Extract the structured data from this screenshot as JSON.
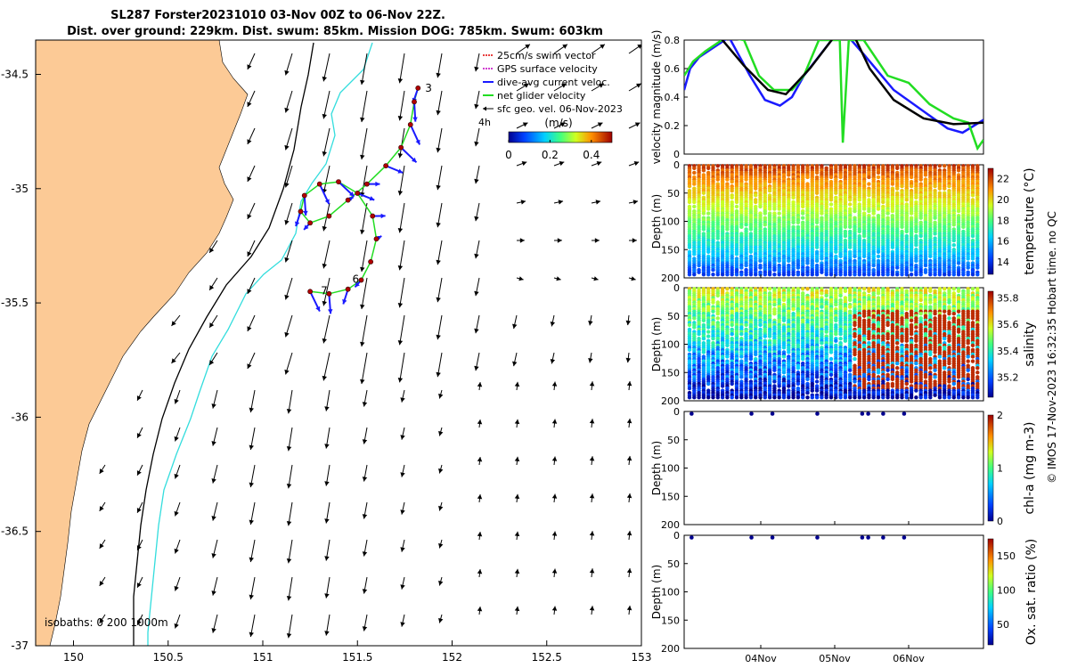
{
  "chart_data": [
    {
      "type": "map",
      "title_line1": "SL287 Forster20231010 03-Nov 00Z to 06-Nov 22Z.",
      "title_line2": "Dist. over ground: 229km. Dist. swum: 85km. Mission DOG: 785km. Swum: 603km",
      "xticks": [
        "150",
        "150.5",
        "151",
        "151.5",
        "152",
        "152.5",
        "153"
      ],
      "yticks": [
        "-34.5",
        "-35",
        "-35.5",
        "-36",
        "-36.5",
        "-37"
      ],
      "xlim": [
        149.8,
        153
      ],
      "ylim": [
        -37,
        -34.35
      ],
      "legend": [
        {
          "label": "25cm/s swim vector",
          "color": "#e00000"
        },
        {
          "label": "GPS surface velocity",
          "color": "#c000c0"
        },
        {
          "label": "dive-avg current veloc.",
          "color": "#1a1aff"
        },
        {
          "label": "net glider velocity",
          "color": "#22dd22"
        },
        {
          "label": "sfc geo. vel. 06-Nov-2023",
          "color": "#000000"
        }
      ],
      "time_marker": "4h",
      "colorbar_title": "(m/s)",
      "colorbar_ticks": [
        "0",
        "0.2",
        "0.4"
      ],
      "colorbar_range": [
        0,
        0.5
      ],
      "isobaths_label": "isobaths: 0   200  1000m",
      "track_labels": [
        "3",
        "7",
        "6"
      ],
      "track": [
        [
          151.25,
          -35.45
        ],
        [
          151.35,
          -35.46
        ],
        [
          151.45,
          -35.44
        ],
        [
          151.52,
          -35.4
        ],
        [
          151.57,
          -35.32
        ],
        [
          151.6,
          -35.22
        ],
        [
          151.58,
          -35.12
        ],
        [
          151.5,
          -35.02
        ],
        [
          151.4,
          -34.97
        ],
        [
          151.3,
          -34.98
        ],
        [
          151.22,
          -35.03
        ],
        [
          151.2,
          -35.1
        ],
        [
          151.25,
          -35.15
        ],
        [
          151.35,
          -35.12
        ],
        [
          151.45,
          -35.05
        ],
        [
          151.55,
          -34.98
        ],
        [
          151.65,
          -34.9
        ],
        [
          151.73,
          -34.82
        ],
        [
          151.78,
          -34.72
        ],
        [
          151.8,
          -34.62
        ],
        [
          151.82,
          -34.56
        ]
      ]
    },
    {
      "type": "line",
      "ylabel": "velocity magnitude (m/s)",
      "yticks": [
        "0",
        "0.2",
        "0.4",
        "0.6",
        "0.8"
      ],
      "ylim": [
        0,
        0.8
      ],
      "series": [
        {
          "name": "dive-avg current veloc.",
          "color": "#1a1aff",
          "x": [
            0,
            0.02,
            0.05,
            0.1,
            0.15,
            0.22,
            0.27,
            0.32,
            0.36,
            0.4,
            0.5,
            0.55,
            0.6,
            0.7,
            0.8,
            0.88,
            0.93,
            1
          ],
          "y": [
            0.45,
            0.6,
            0.68,
            0.75,
            0.82,
            0.55,
            0.38,
            0.34,
            0.4,
            0.55,
            0.82,
            0.82,
            0.7,
            0.45,
            0.3,
            0.18,
            0.15,
            0.24
          ]
        },
        {
          "name": "net glider velocity",
          "color": "#22dd22",
          "x": [
            0,
            0.03,
            0.07,
            0.14,
            0.2,
            0.25,
            0.3,
            0.36,
            0.4,
            0.45,
            0.52,
            0.53,
            0.55,
            0.6,
            0.68,
            0.75,
            0.82,
            0.9,
            0.95,
            0.98,
            1
          ],
          "y": [
            0.55,
            0.65,
            0.72,
            0.82,
            0.8,
            0.55,
            0.45,
            0.45,
            0.55,
            0.8,
            0.8,
            0.08,
            0.8,
            0.8,
            0.55,
            0.5,
            0.35,
            0.25,
            0.22,
            0.04,
            0.1
          ]
        },
        {
          "name": "sfc geo. vel. 06-Nov-2023",
          "color": "#000000",
          "x": [
            0.12,
            0.2,
            0.28,
            0.34,
            0.42,
            0.5,
            0.57,
            0.62,
            0.7,
            0.8,
            0.9,
            1
          ],
          "y": [
            0.82,
            0.62,
            0.45,
            0.42,
            0.6,
            0.82,
            0.82,
            0.6,
            0.38,
            0.25,
            0.21,
            0.22
          ]
        }
      ]
    },
    {
      "type": "scatter",
      "ylabel": "Depth (m)",
      "cblabel": "temperature (°C)",
      "yticks": [
        "0",
        "50",
        "100",
        "150",
        "200"
      ],
      "cbticks": [
        "14",
        "16",
        "18",
        "20",
        "22"
      ],
      "cbrange": [
        12.8,
        23
      ]
    },
    {
      "type": "scatter",
      "ylabel": "Depth (m)",
      "cblabel": "salinity",
      "yticks": [
        "0",
        "50",
        "100",
        "150",
        "200"
      ],
      "cbticks": [
        "35.2",
        "35.4",
        "35.6",
        "35.8"
      ],
      "cbrange": [
        35.05,
        35.85
      ]
    },
    {
      "type": "scatter",
      "ylabel": "Depth (m)",
      "cblabel": "chl-a (mg m-3)",
      "yticks": [
        "0",
        "50",
        "100",
        "150",
        "200"
      ],
      "cbticks": [
        "0",
        "1",
        "2"
      ],
      "cbrange": [
        0,
        2
      ],
      "surface_points": [
        0.01,
        0.21,
        0.28,
        0.43,
        0.58,
        0.6,
        0.65,
        0.72
      ]
    },
    {
      "type": "scatter",
      "ylabel": "Depth (m)",
      "cblabel": "Ox. sat. ratio (%)",
      "yticks": [
        "0",
        "50",
        "100",
        "150",
        "200"
      ],
      "cbticks": [
        "50",
        "100",
        "150"
      ],
      "cbrange": [
        20,
        175
      ],
      "surface_points": [
        0.01,
        0.21,
        0.28,
        0.43,
        0.58,
        0.6,
        0.65,
        0.72
      ],
      "xticks": [
        "04Nov",
        "05Nov",
        "06Nov"
      ]
    }
  ],
  "footer": "© IMOS 17-Nov-2023 16:32:35 Hobart time. no QC"
}
